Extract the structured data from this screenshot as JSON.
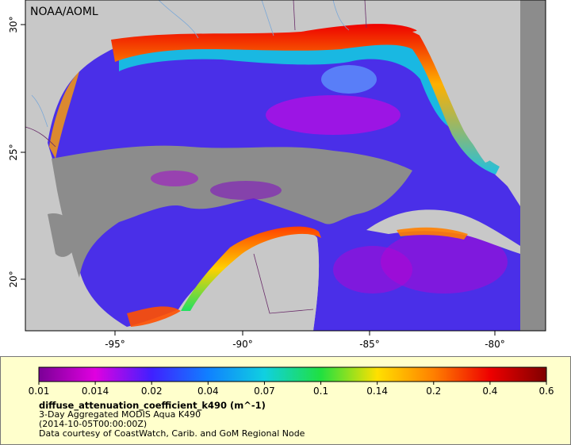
{
  "map": {
    "watermark": "NOAA/AOML",
    "lon_ticks": [
      "-95°",
      "-90°",
      "-85°",
      "-80°"
    ],
    "lat_ticks": [
      "30°",
      "25°",
      "20°"
    ]
  },
  "legend": {
    "tick_labels": [
      "0.01",
      "0.014",
      "0.02",
      "0.04",
      "0.07",
      "0.1",
      "0.14",
      "0.2",
      "0.4",
      "0.6"
    ],
    "colors": [
      "#7a0096",
      "#e000e0",
      "#4020ff",
      "#1080ff",
      "#10d0e0",
      "#20e040",
      "#ffe000",
      "#ff8000",
      "#ee0000",
      "#800000"
    ],
    "variable": "diffuse_attenuation_coefficient_k490 (m^-1)",
    "line1": "3-Day Aggregated MODIS Aqua K490",
    "line2": "(2014-10-05T00:00:00Z)",
    "line3": "Data courtesy of CoastWatch, Carib. and GoM Regional Node"
  },
  "colors": {
    "land": "#c8c8c8",
    "no_data": "#8c8c8c",
    "legend_bg": "#ffffcc"
  }
}
